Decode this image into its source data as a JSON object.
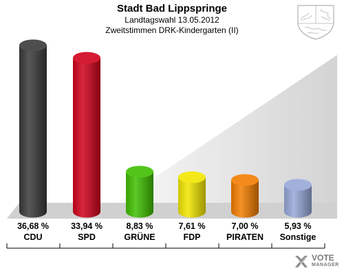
{
  "header": {
    "title": "Stadt Bad Lippspringe",
    "subtitle": "Landtagswahl 13.05.2012",
    "subtitle2": "Zweitstimmen DRK-Kindergarten (II)"
  },
  "logo": {
    "line1": "VOTE",
    "line2": "MANAGER"
  },
  "colors": {
    "floor": "#d0d0d0",
    "wall_dark": "#c8c8c8",
    "wall_light": "#f7f7f7"
  },
  "chart_data": {
    "type": "bar",
    "title": "Stadt Bad Lippspringe",
    "categories": [
      "CDU",
      "SPD",
      "GRÜNE",
      "FDP",
      "PIRATEN",
      "Sonstige"
    ],
    "values": [
      36.68,
      33.94,
      8.83,
      7.61,
      7.0,
      5.93
    ],
    "value_labels": [
      "36,68 %",
      "33,94 %",
      "8,83 %",
      "7,61 %",
      "7,00 %",
      "5,93 %"
    ],
    "colors": [
      "#3a3a3a",
      "#d0021b",
      "#3fbf00",
      "#f2e600",
      "#f27d00",
      "#96a8d8"
    ],
    "ylim": [
      0,
      36.68
    ],
    "grid": false,
    "legend": "none"
  }
}
